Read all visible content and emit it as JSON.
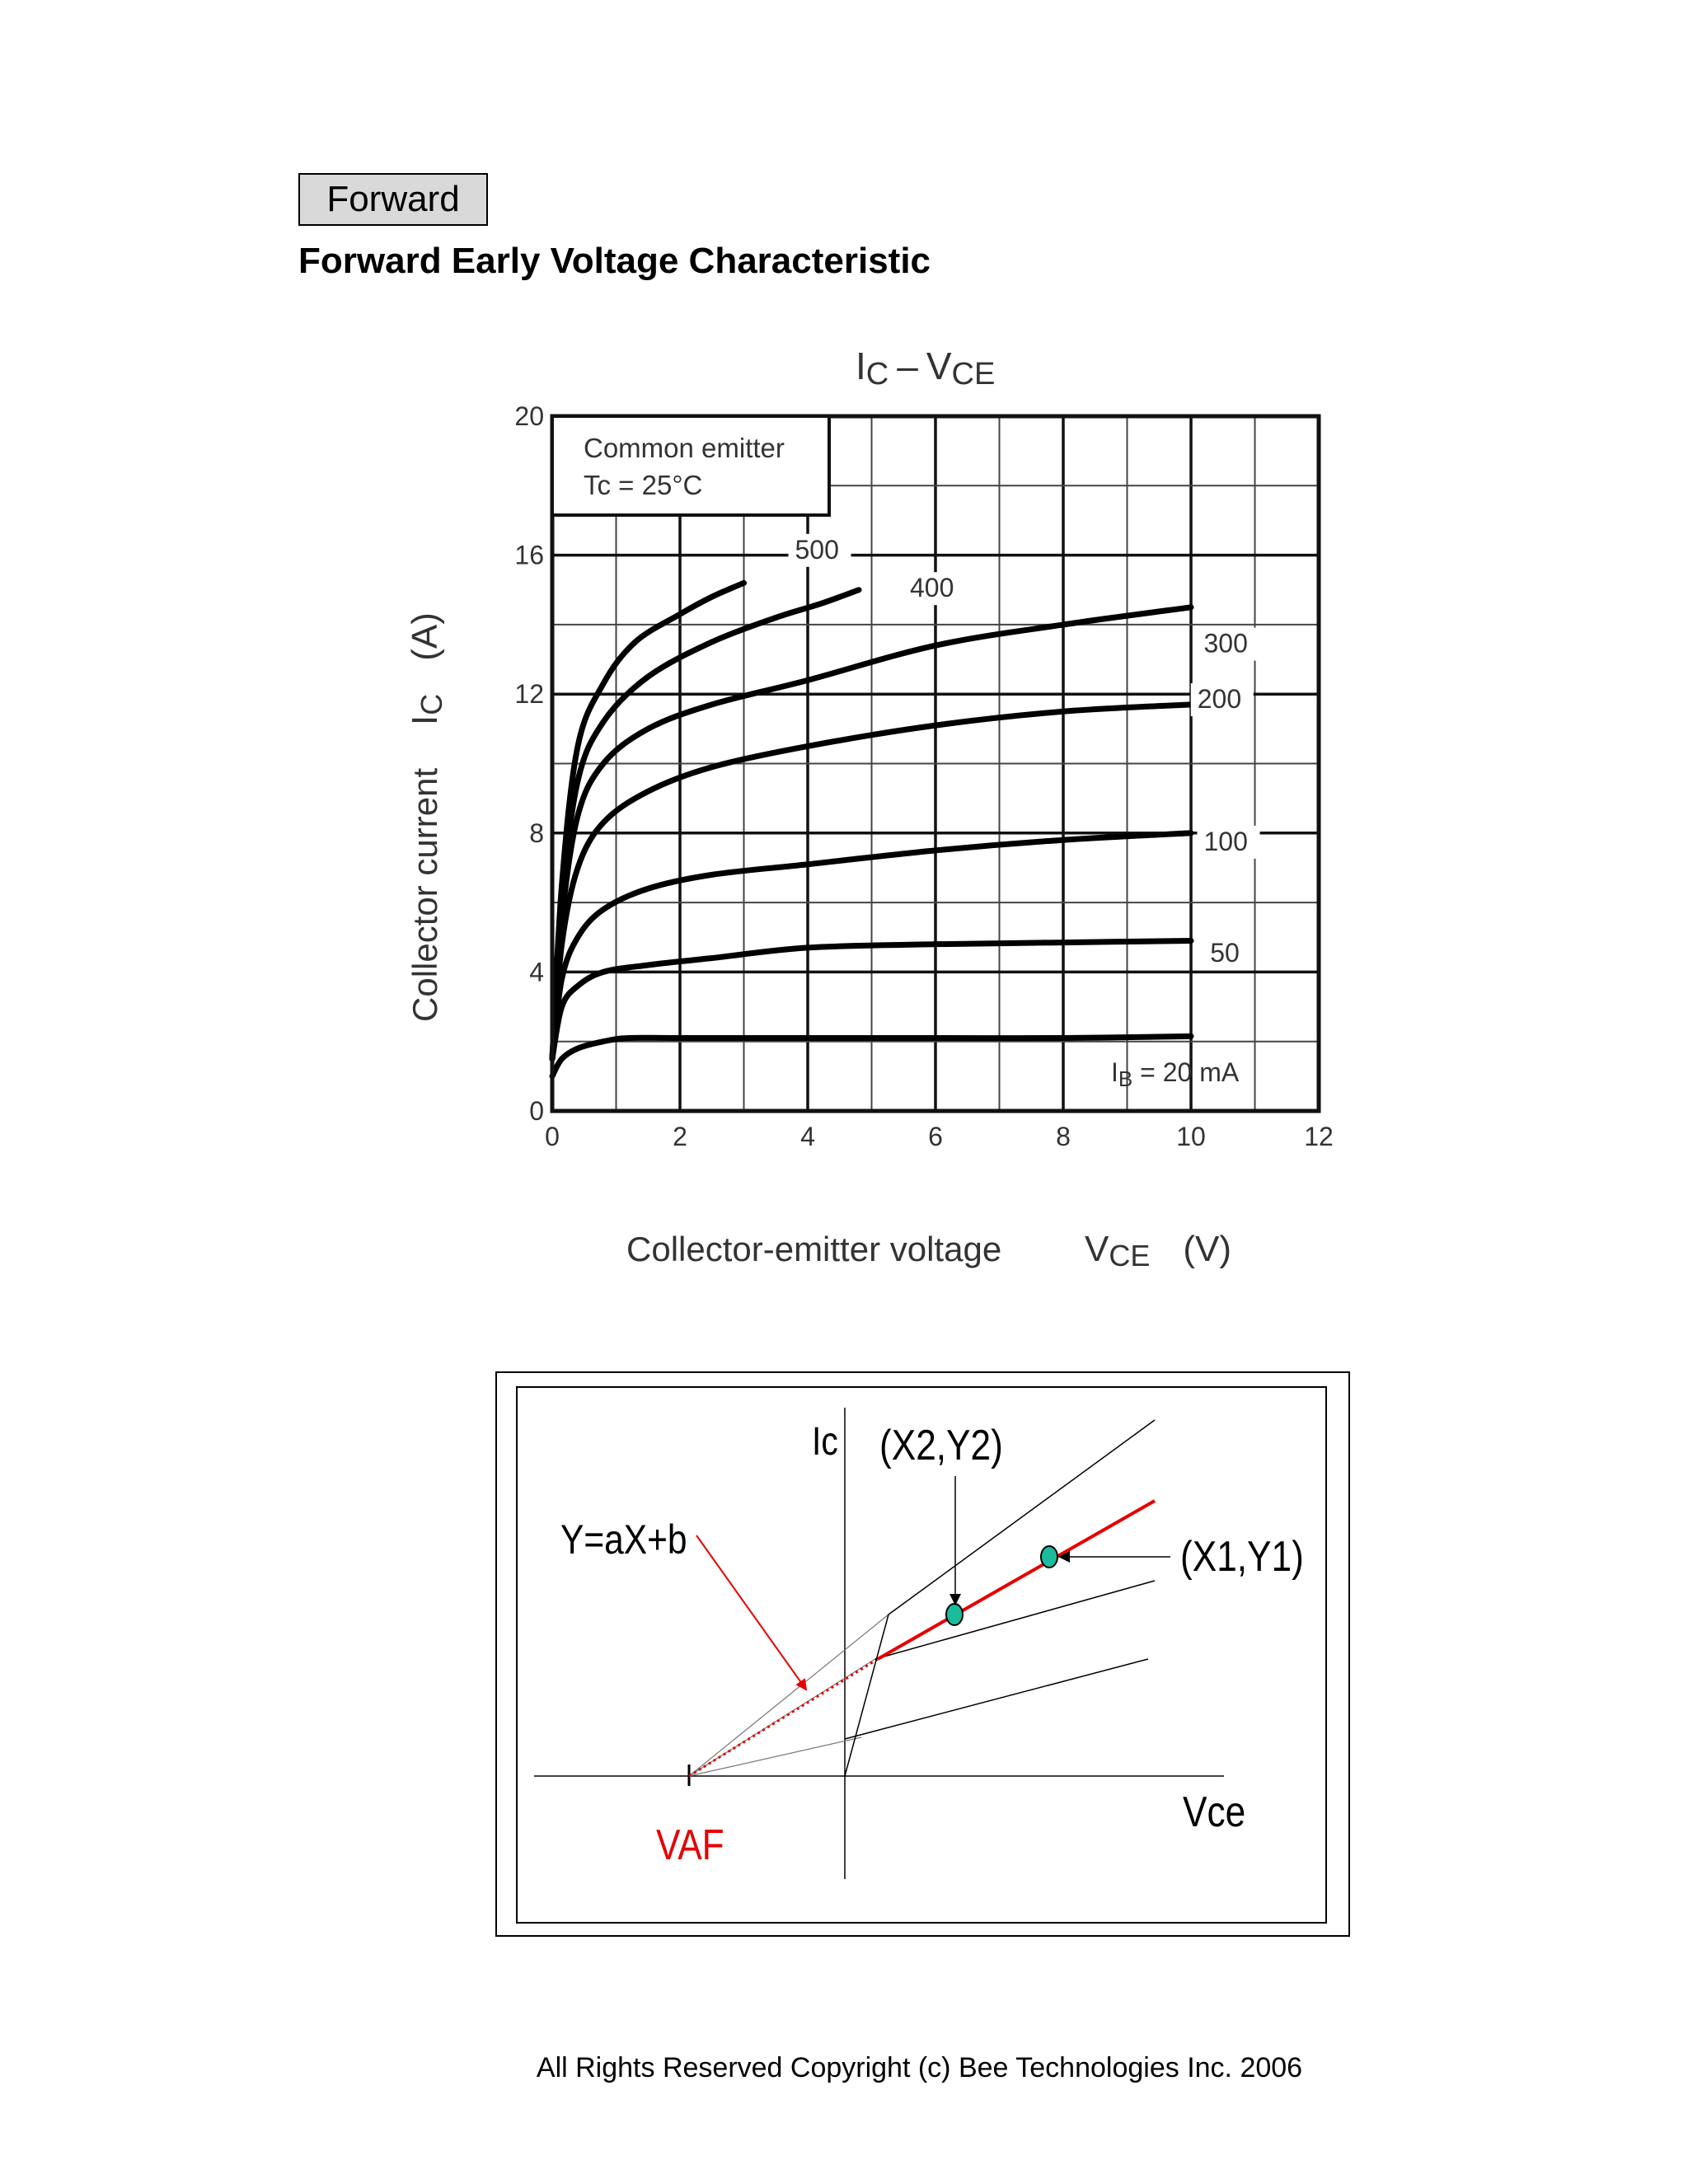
{
  "section_tag": "Forward",
  "heading": "Forward Early Voltage Characteristic",
  "chart_data": {
    "type": "line",
    "title": "IC – VCE",
    "title_parts": {
      "main1": "I",
      "sub1": "C",
      "dash": "–",
      "main2": "V",
      "sub2": "CE"
    },
    "xlabel": "Collector-emitter voltage",
    "xlabel_symbol": {
      "main": "V",
      "sub": "CE",
      "unit": "(V)"
    },
    "ylabel": "Collector current",
    "ylabel_symbol": {
      "main": "I",
      "sub": "C",
      "unit": "(A)"
    },
    "xlim": [
      0,
      12
    ],
    "ylim": [
      0,
      20
    ],
    "x_ticks": [
      "0",
      "2",
      "4",
      "6",
      "8",
      "10",
      "12"
    ],
    "y_ticks": [
      "0",
      "4",
      "8",
      "12",
      "16",
      "20"
    ],
    "grid": true,
    "annotation": {
      "line1": "Common emitter",
      "line2": "Tc = 25°C"
    },
    "ib_label": {
      "prefix": "I",
      "sub": "B",
      "suffix": " = 20 mA"
    },
    "series": [
      {
        "name": "500",
        "x": [
          0,
          0.15,
          0.4,
          0.8,
          1.3,
          2.0,
          2.5,
          3.0
        ],
        "y": [
          1.5,
          6.5,
          10.5,
          12.3,
          13.5,
          14.3,
          14.8,
          15.2
        ]
      },
      {
        "name": "400",
        "x": [
          0,
          0.15,
          0.4,
          0.8,
          1.5,
          2.5,
          3.5,
          4.2,
          4.8
        ],
        "y": [
          1.5,
          6.0,
          9.5,
          11.2,
          12.5,
          13.5,
          14.2,
          14.6,
          15.0
        ]
      },
      {
        "name": "300",
        "x": [
          0,
          0.15,
          0.4,
          0.8,
          1.5,
          2.5,
          4,
          6,
          8,
          10
        ],
        "y": [
          1.5,
          5.5,
          8.5,
          10.0,
          11.0,
          11.7,
          12.4,
          13.4,
          14.0,
          14.5
        ]
      },
      {
        "name": "200",
        "x": [
          0,
          0.15,
          0.4,
          0.8,
          1.5,
          2.5,
          4,
          6,
          8,
          10
        ],
        "y": [
          1.5,
          4.8,
          7.0,
          8.3,
          9.2,
          9.9,
          10.5,
          11.1,
          11.5,
          11.7
        ]
      },
      {
        "name": "100",
        "x": [
          0,
          0.15,
          0.4,
          0.8,
          1.5,
          2.5,
          4,
          6,
          8,
          10
        ],
        "y": [
          1.5,
          3.8,
          5.0,
          5.8,
          6.4,
          6.8,
          7.1,
          7.5,
          7.8,
          8.0
        ]
      },
      {
        "name": "50",
        "x": [
          0,
          0.15,
          0.4,
          0.8,
          1.5,
          2.5,
          4,
          6,
          8,
          10
        ],
        "y": [
          1.5,
          3.0,
          3.6,
          4.0,
          4.2,
          4.4,
          4.7,
          4.8,
          4.85,
          4.9
        ]
      },
      {
        "name": "20",
        "x": [
          0,
          0.15,
          0.4,
          0.8,
          1.2,
          2,
          4,
          6,
          8,
          10
        ],
        "y": [
          1.0,
          1.5,
          1.8,
          2.0,
          2.1,
          2.1,
          2.1,
          2.1,
          2.1,
          2.15
        ]
      }
    ],
    "curve_labels": [
      "500",
      "400",
      "300",
      "200",
      "100",
      "50"
    ]
  },
  "diagram": {
    "ic_label": "Ic",
    "vce_label": "Vce",
    "vaf_label": "VAF",
    "equation_label": "Y=aX+b",
    "point2_label": "(X2,Y2)",
    "point1_label": "(X1,Y1)",
    "colors": {
      "red": "#e60000",
      "marker": "#1abc9c"
    }
  },
  "copyright": "All Rights Reserved Copyright (c) Bee Technologies Inc. 2006"
}
